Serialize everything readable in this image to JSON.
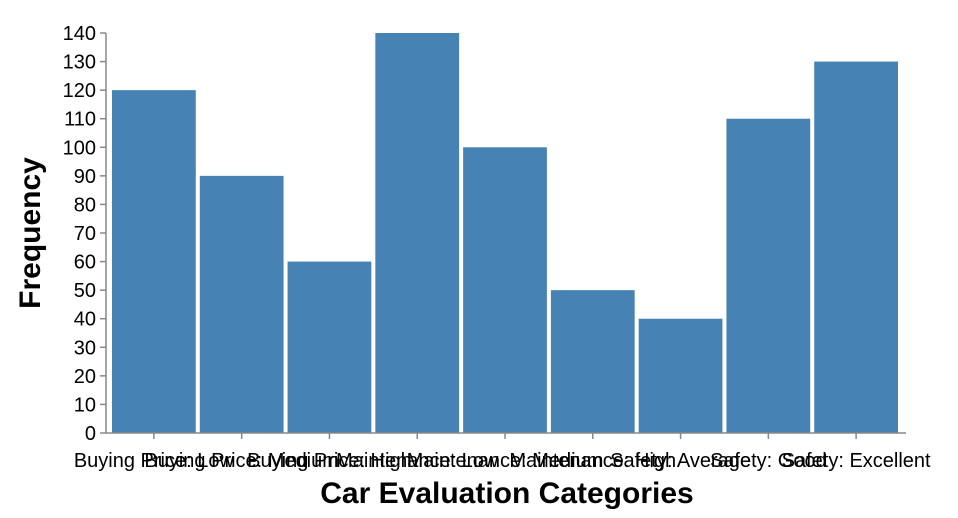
{
  "chart_data": {
    "type": "bar",
    "categories": [
      "Buying Price: Low",
      "Buying Price: Medium",
      "Buying Price: High",
      "Maintenance: Low",
      "Maintenance: Medium",
      "Maintenance: High",
      "Safety: Average",
      "Safety: Good",
      "Safety: Excellent"
    ],
    "values": [
      120,
      90,
      60,
      140,
      100,
      50,
      40,
      110,
      130
    ],
    "xlabel": "Car Evaluation Categories",
    "ylabel": "Frequency",
    "ylim": [
      0,
      140
    ],
    "yticks": [
      0,
      10,
      20,
      30,
      40,
      50,
      60,
      70,
      80,
      90,
      100,
      110,
      120,
      130,
      140
    ],
    "grid": false,
    "bar_color": "#4682b4"
  }
}
